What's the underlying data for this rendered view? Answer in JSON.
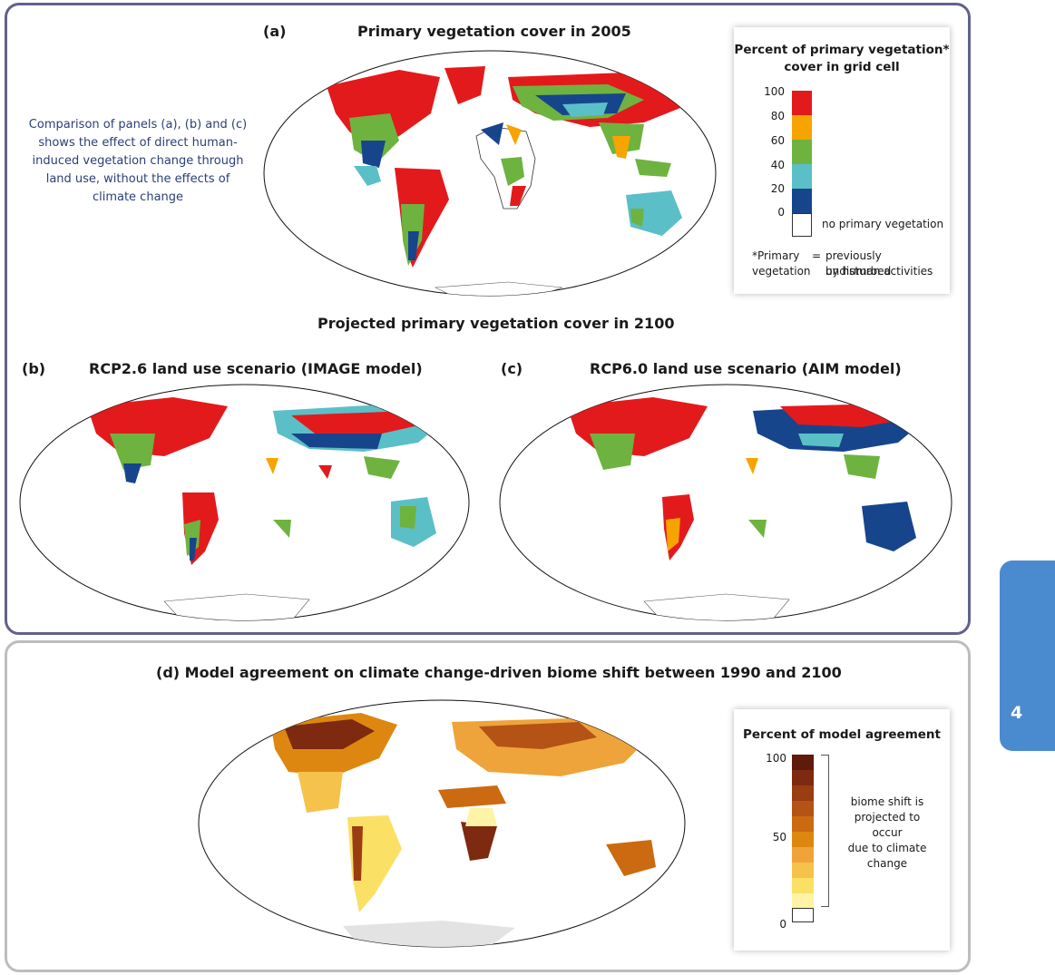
{
  "panel_a": {
    "letter": "(a)",
    "title": "Primary vegetation cover in 2005",
    "note": "Comparison of panels (a), (b) and (c) shows the effect of direct human-induced vegetation change through land use, without the effects of climate change"
  },
  "projected_title": "Projected primary vegetation cover in 2100",
  "panel_b": {
    "letter": "(b)",
    "title": "RCP2.6 land use scenario (IMAGE model)"
  },
  "panel_c": {
    "letter": "(c)",
    "title": "RCP6.0 land use scenario (AIM model)"
  },
  "panel_d": {
    "title": "(d) Model agreement on climate change-driven biome shift between 1990 and 2100"
  },
  "legend_veg": {
    "title_line1": "Percent of primary vegetation*",
    "title_line2": "cover in grid cell",
    "ticks": [
      "100",
      "80",
      "60",
      "40",
      "20",
      "0"
    ],
    "colors": [
      "#e31a1c",
      "#f7a400",
      "#6eb33f",
      "#5bbfc8",
      "#17458c",
      "#ffffff"
    ],
    "no_veg_label": "no primary vegetation",
    "footnote_term_1": "*Primary",
    "footnote_term_2": "vegetation",
    "footnote_eq": "=",
    "footnote_def_1": "previously undisturbed",
    "footnote_def_2": "by human activities"
  },
  "legend_agree": {
    "title": "Percent of model agreement",
    "ticks": [
      "100",
      "50",
      "0"
    ],
    "colors": [
      "#5e1a0b",
      "#7d2a10",
      "#9a3d12",
      "#b55216",
      "#cc6a12",
      "#de8710",
      "#eea43a",
      "#f5c24c",
      "#fbe066",
      "#fff3a6",
      "#ffffff"
    ],
    "bracket_text_1": "biome shift is",
    "bracket_text_2": "projected to occur",
    "bracket_text_3": "due to climate",
    "bracket_text_4": "change"
  },
  "side_tab": {
    "label": "4"
  }
}
